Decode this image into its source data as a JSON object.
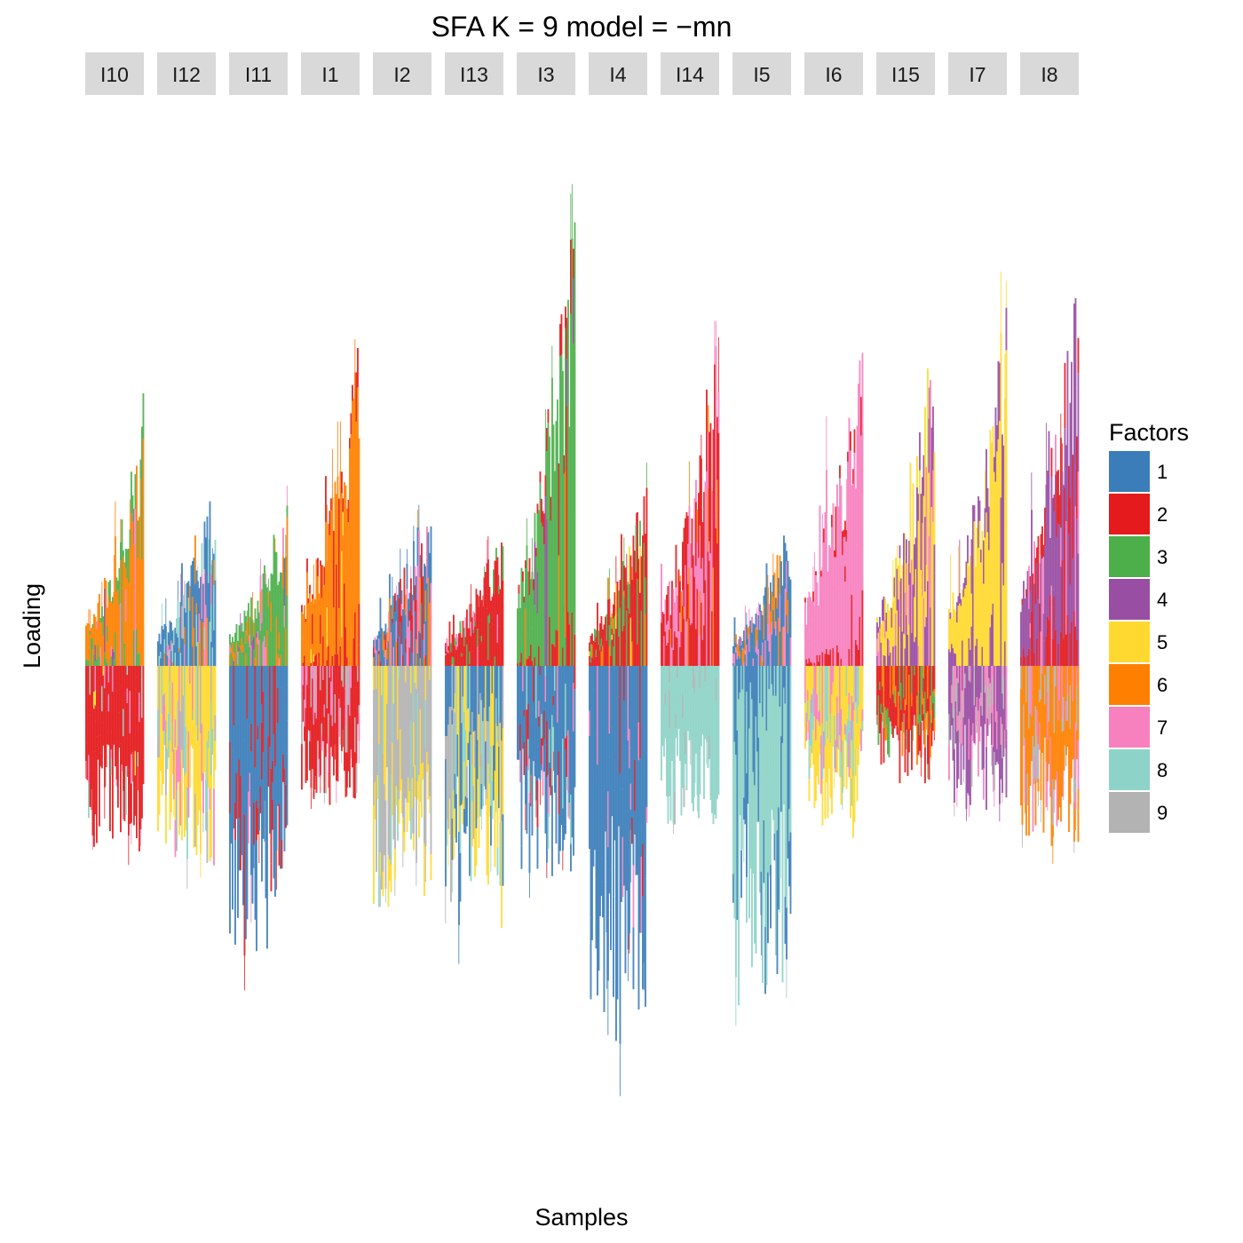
{
  "chart_data": {
    "type": "bar",
    "subtype": "stacked-signed-structure-plot",
    "title": "SFA K = 9 model =  −mn",
    "xlabel": "Samples",
    "ylabel": "Loading",
    "grid": false,
    "legend_position": "right",
    "y_axis_ticks_shown": false,
    "legend": {
      "title": "Factors",
      "factors": [
        {
          "name": "1",
          "color": "#3b7db9"
        },
        {
          "name": "2",
          "color": "#e41a1c"
        },
        {
          "name": "3",
          "color": "#4daf4a"
        },
        {
          "name": "4",
          "color": "#984ea3"
        },
        {
          "name": "5",
          "color": "#ffd92f"
        },
        {
          "name": "6",
          "color": "#ff7f00"
        },
        {
          "name": "7",
          "color": "#f781bf"
        },
        {
          "name": "8",
          "color": "#8dd3c7"
        },
        {
          "name": "9",
          "color": "#b3b3b3"
        }
      ]
    },
    "ylim": [
      -1.0,
      1.0
    ],
    "panels": [
      {
        "label": "I10",
        "pos_max": 0.54,
        "neg_max": 0.47,
        "pos_mix": {
          "6": 0.8,
          "3": 0.08,
          "7": 0.06,
          "4": 0.06
        },
        "neg_mix": {
          "2": 0.7,
          "7": 0.15,
          "8": 0.1,
          "5": 0.05
        }
      },
      {
        "label": "I12",
        "pos_max": 0.39,
        "neg_max": 0.5,
        "pos_mix": {
          "8": 0.35,
          "1": 0.3,
          "6": 0.2,
          "7": 0.15
        },
        "neg_mix": {
          "9": 0.3,
          "5": 0.3,
          "8": 0.2,
          "7": 0.2
        }
      },
      {
        "label": "I11",
        "pos_max": 0.37,
        "neg_max": 0.72,
        "pos_mix": {
          "3": 0.45,
          "6": 0.25,
          "7": 0.2,
          "4": 0.1
        },
        "neg_mix": {
          "1": 0.45,
          "2": 0.45,
          "7": 0.1
        }
      },
      {
        "label": "I1",
        "pos_max": 0.72,
        "neg_max": 0.35,
        "pos_mix": {
          "6": 0.9,
          "5": 0.05,
          "2": 0.05
        },
        "neg_mix": {
          "2": 0.45,
          "9": 0.3,
          "7": 0.25
        }
      },
      {
        "label": "I2",
        "pos_max": 0.4,
        "neg_max": 0.62,
        "pos_mix": {
          "7": 0.3,
          "6": 0.25,
          "2": 0.25,
          "1": 0.2
        },
        "neg_mix": {
          "9": 0.8,
          "8": 0.1,
          "5": 0.1
        }
      },
      {
        "label": "I13",
        "pos_max": 0.31,
        "neg_max": 0.6,
        "pos_mix": {
          "2": 0.6,
          "7": 0.2,
          "3": 0.2
        },
        "neg_mix": {
          "9": 0.3,
          "5": 0.3,
          "8": 0.2,
          "1": 0.2
        }
      },
      {
        "label": "I3",
        "pos_max": 1.0,
        "neg_max": 0.53,
        "pos_mix": {
          "3": 0.85,
          "2": 0.05,
          "4": 0.05,
          "6": 0.05
        },
        "neg_mix": {
          "1": 0.45,
          "2": 0.25,
          "8": 0.15,
          "7": 0.15
        }
      },
      {
        "label": "I4",
        "pos_max": 0.4,
        "neg_max": 0.88,
        "pos_mix": {
          "3": 0.4,
          "2": 0.3,
          "6": 0.2,
          "5": 0.1
        },
        "neg_mix": {
          "1": 0.8,
          "2": 0.1,
          "7": 0.1
        }
      },
      {
        "label": "I14",
        "pos_max": 0.72,
        "neg_max": 0.4,
        "pos_mix": {
          "7": 0.55,
          "2": 0.25,
          "6": 0.2
        },
        "neg_mix": {
          "8": 0.8,
          "9": 0.2
        }
      },
      {
        "label": "I5",
        "pos_max": 0.32,
        "neg_max": 0.86,
        "pos_mix": {
          "7": 0.4,
          "1": 0.3,
          "6": 0.3
        },
        "neg_mix": {
          "8": 0.9,
          "1": 0.1
        }
      },
      {
        "label": "I6",
        "pos_max": 0.74,
        "neg_max": 0.4,
        "pos_mix": {
          "7": 0.95,
          "2": 0.05
        },
        "neg_mix": {
          "7": 0.4,
          "8": 0.3,
          "5": 0.3
        }
      },
      {
        "label": "I15",
        "pos_max": 0.68,
        "neg_max": 0.3,
        "pos_mix": {
          "5": 0.6,
          "7": 0.25,
          "4": 0.15
        },
        "neg_mix": {
          "6": 0.35,
          "2": 0.35,
          "3": 0.3
        }
      },
      {
        "label": "I7",
        "pos_max": 0.8,
        "neg_max": 0.37,
        "pos_mix": {
          "5": 0.9,
          "4": 0.1
        },
        "neg_mix": {
          "9": 0.3,
          "7": 0.4,
          "4": 0.3
        }
      },
      {
        "label": "I8",
        "pos_max": 0.9,
        "neg_max": 0.46,
        "pos_mix": {
          "4": 0.8,
          "7": 0.1,
          "2": 0.1
        },
        "neg_mix": {
          "6": 0.4,
          "7": 0.3,
          "9": 0.3
        }
      }
    ]
  }
}
